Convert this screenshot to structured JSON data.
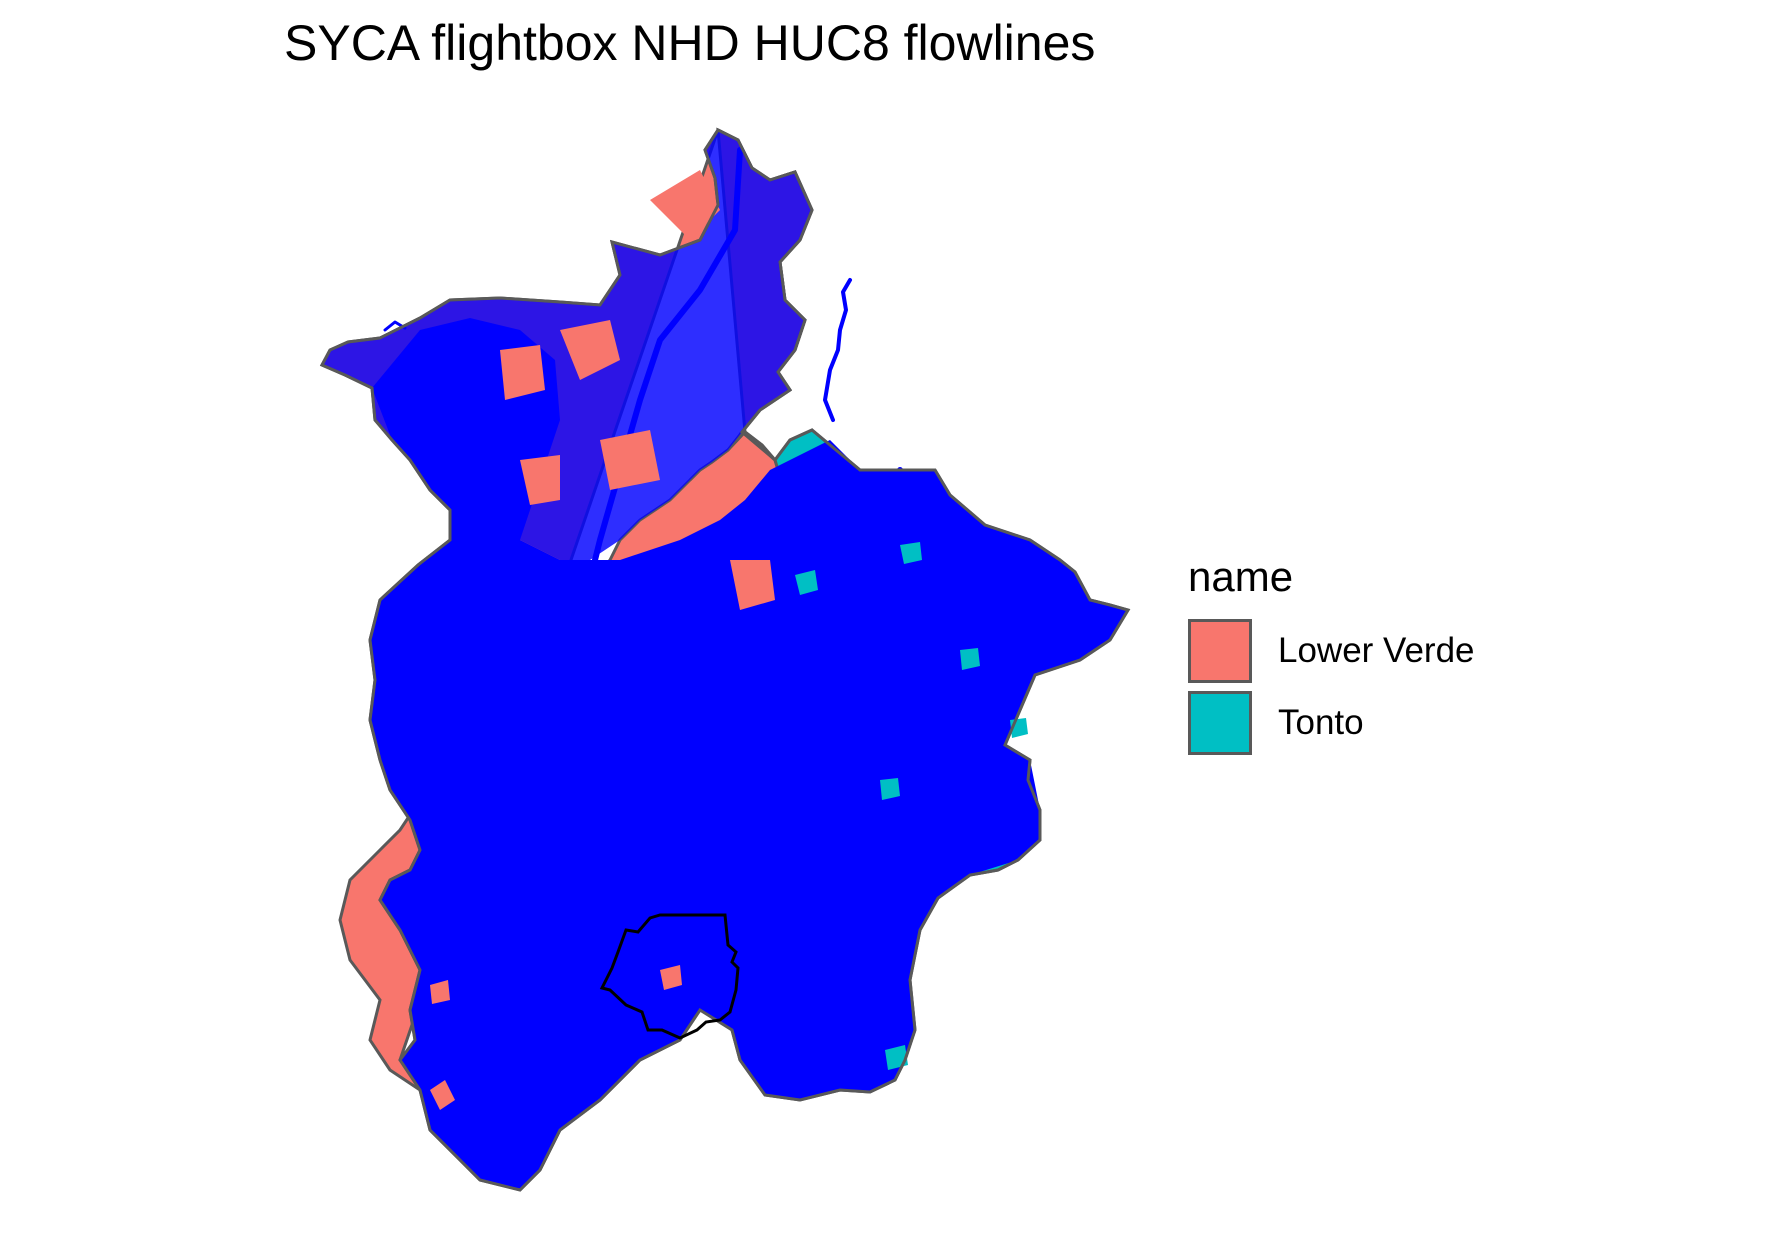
{
  "title": "SYCA flightbox NHD HUC8 flowlines",
  "legend": {
    "title": "name",
    "items": [
      {
        "label": "Lower Verde",
        "color": "#F8766D"
      },
      {
        "label": "Tonto",
        "color": "#00BFC4"
      }
    ]
  },
  "colors": {
    "flowlines": "#0000FF",
    "boundary": "#595959",
    "flightbox_outline": "#000000",
    "background": "#FFFFFF"
  },
  "layers": [
    "huc8-regions",
    "nhd-flowlines",
    "flightbox-outline"
  ]
}
